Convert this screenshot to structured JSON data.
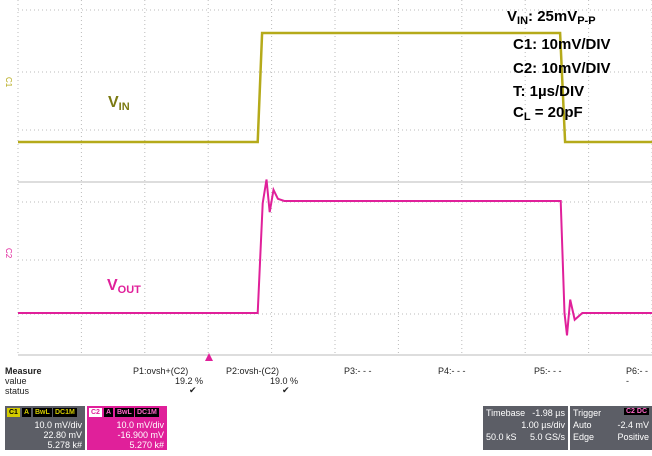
{
  "annotations": {
    "vin_label": "25mV",
    "vin_sub": "P-P",
    "c1": "C1: 10mV/DIV",
    "c2": "C2: 10mV/DIV",
    "t": "T: 1µs/DIV",
    "cl_value": " = 20pF"
  },
  "trace_labels": {
    "v": "V",
    "in": "IN",
    "out": "OUT"
  },
  "channel_markers": {
    "c1": "C1",
    "c2": "C2"
  },
  "measure": {
    "title": "Measure",
    "row_value": "value",
    "row_status": "status",
    "columns": [
      "P1:ovsh+(C2)",
      "P2:ovsh-(C2)",
      "P3:- - -",
      "P4:- - -",
      "P5:- - -",
      "P6:- - -"
    ],
    "values": [
      "19.2 %",
      "19.0 %"
    ],
    "status_check": "✔"
  },
  "ch1": {
    "badge": "C1",
    "tags": [
      "A",
      "BwL",
      "DC1M"
    ],
    "vdiv": "10.0 mV/div",
    "offset": "22.80 mV",
    "extra": "5.278 k#"
  },
  "ch2": {
    "badge": "C2",
    "tags": [
      "A",
      "BwL",
      "DC1M"
    ],
    "vdiv": "10.0 mV/div",
    "offset": "-16.900 mV",
    "extra": "5.270 k#"
  },
  "timebase": {
    "title": "Timebase",
    "delay": "-1.98 µs",
    "tdiv": "1.00 µs/div",
    "points": "50.0 kS",
    "rate": "5.0 GS/s"
  },
  "trigger": {
    "title": "Trigger",
    "badge": "C2 DC",
    "mode": "Auto",
    "level": "-2.4 mV",
    "type": "Edge",
    "slope": "Positive"
  },
  "colors": {
    "c1": "#b5aa1a",
    "c2": "#e0209a",
    "grid": "#bbbbbb",
    "panel": "#5c5e66"
  },
  "chart_data": {
    "type": "line",
    "xlabel": "",
    "ylabel": "",
    "xlim": [
      0,
      10
    ],
    "series": [
      {
        "name": "VIN",
        "x": [
          0,
          3.78,
          3.85,
          3.95,
          8.55,
          8.63,
          8.72,
          10
        ],
        "y": [
          0,
          0,
          25,
          25,
          25,
          0,
          0,
          0
        ]
      },
      {
        "name": "VOUT",
        "x": [
          0,
          3.78,
          3.86,
          3.92,
          3.97,
          4.03,
          4.1,
          4.2,
          8.56,
          8.62,
          8.66,
          8.71,
          8.78,
          8.9,
          10
        ],
        "y": [
          0,
          0,
          24.5,
          29.8,
          22.5,
          27.5,
          25.5,
          25,
          25,
          0,
          -5,
          3,
          -1.5,
          0,
          0
        ]
      }
    ]
  }
}
